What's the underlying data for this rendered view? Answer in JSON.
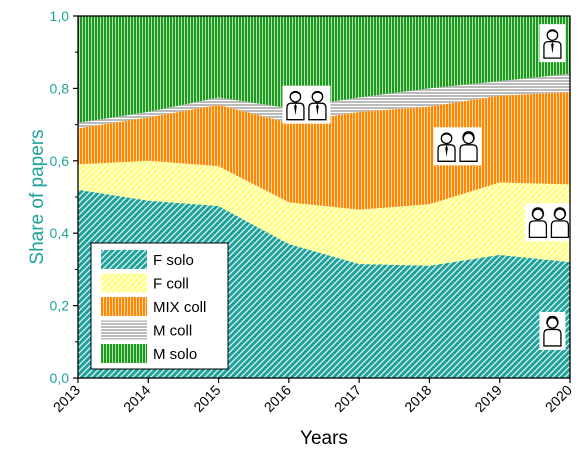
{
  "chart_data": {
    "type": "area",
    "stacked": true,
    "title": "",
    "xlabel": "Years",
    "ylabel": "Share of papers",
    "x": [
      2013,
      2014,
      2015,
      2016,
      2017,
      2018,
      2019,
      2020
    ],
    "xlim": [
      2013,
      2020
    ],
    "ylim": [
      0,
      1
    ],
    "yticks": [
      "0,0",
      "0,2",
      "0,4",
      "0,6",
      "0,8",
      "1,0"
    ],
    "xticks": [
      "2013",
      "2014",
      "2015",
      "2016",
      "2017",
      "2018",
      "2019",
      "2020"
    ],
    "grid": false,
    "legend_position": "bottom-left",
    "series": [
      {
        "name": "F solo",
        "color": "#1fa39a",
        "pattern": "diagonal-hatch",
        "values": [
          0.52,
          0.49,
          0.475,
          0.37,
          0.315,
          0.31,
          0.34,
          0.32
        ]
      },
      {
        "name": "F coll",
        "color": "#ffff88",
        "pattern": "diagonal-hatch",
        "values": [
          0.07,
          0.11,
          0.11,
          0.115,
          0.15,
          0.17,
          0.2,
          0.215
        ]
      },
      {
        "name": "MIX coll",
        "color": "#ff8800",
        "pattern": "vertical-lines",
        "values": [
          0.1,
          0.12,
          0.17,
          0.22,
          0.27,
          0.27,
          0.24,
          0.255
        ]
      },
      {
        "name": "M coll",
        "color": "#bbbbbb",
        "pattern": "horizontal-lines",
        "values": [
          0.015,
          0.015,
          0.02,
          0.04,
          0.04,
          0.05,
          0.04,
          0.05
        ]
      },
      {
        "name": "M solo",
        "color": "#1b9a1b",
        "pattern": "vertical-lines",
        "values": [
          0.295,
          0.265,
          0.225,
          0.255,
          0.225,
          0.2,
          0.18,
          0.16
        ]
      }
    ],
    "pictograms": [
      {
        "name": "single-male-icon",
        "x": 2019.75,
        "y": 0.925,
        "people": [
          "m"
        ]
      },
      {
        "name": "two-males-icon",
        "x": 2016.25,
        "y": 0.755,
        "people": [
          "m",
          "m"
        ]
      },
      {
        "name": "male-female-icon",
        "x": 2018.4,
        "y": 0.64,
        "people": [
          "m",
          "f"
        ]
      },
      {
        "name": "two-females-icon",
        "x": 2019.7,
        "y": 0.43,
        "people": [
          "f",
          "f"
        ]
      },
      {
        "name": "single-female-icon",
        "x": 2019.75,
        "y": 0.13,
        "people": [
          "f"
        ]
      }
    ]
  }
}
